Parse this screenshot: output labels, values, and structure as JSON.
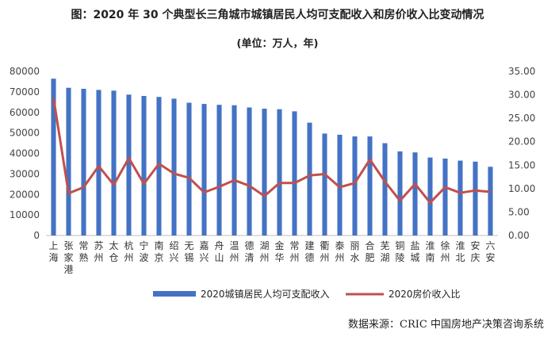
{
  "chart_data": {
    "type": "bar",
    "title": "图：2020 年 30 个典型长三角城市城镇居民人均可支配收入和房价收入比变动情况",
    "subtitle": "(单位：万人，年)",
    "categories": [
      "上海",
      "张家港",
      "常熟",
      "苏州",
      "太仓",
      "杭州",
      "宁波",
      "南京",
      "绍兴",
      "无锡",
      "嘉兴",
      "舟山",
      "温州",
      "德清",
      "湖州",
      "金华",
      "常州",
      "建德",
      "衢州",
      "泰州",
      "丽水",
      "合肥",
      "芜湖",
      "铜陵",
      "盐城",
      "淮南",
      "徐州",
      "淮北",
      "安庆",
      "六安"
    ],
    "y_left": {
      "ylim": [
        0,
        80000
      ],
      "ticks": [
        "0",
        "10000",
        "20000",
        "30000",
        "40000",
        "50000",
        "60000",
        "70000",
        "80000"
      ]
    },
    "y_right": {
      "ylim": [
        0,
        35
      ],
      "ticks": [
        "0.00",
        "5.00",
        "10.00",
        "15.00",
        "20.00",
        "25.00",
        "30.00",
        "35.00"
      ]
    },
    "series": [
      {
        "name": "2020城镇居民人均可支配收入",
        "type": "bar",
        "axis": "left",
        "color": "#4472C4",
        "values": [
          76437,
          72000,
          71500,
          70966,
          70600,
          68666,
          68008,
          67553,
          66694,
          64714,
          64124,
          63702,
          63495,
          62400,
          61800,
          61545,
          60529,
          55000,
          49700,
          49103,
          48300,
          48283,
          45000,
          41000,
          40500,
          38000,
          37500,
          36500,
          36000,
          33500
        ]
      },
      {
        "name": "2020房价收入比",
        "type": "line",
        "axis": "right",
        "color": "#C0504D",
        "values": [
          29.3,
          9.0,
          10.3,
          14.8,
          10.8,
          16.5,
          11.0,
          15.3,
          13.2,
          12.3,
          9.2,
          10.4,
          11.8,
          10.6,
          8.4,
          11.2,
          11.2,
          12.8,
          13.1,
          10.3,
          11.2,
          16.2,
          11.5,
          7.4,
          11.0,
          7.0,
          10.3,
          9.1,
          9.6,
          9.3
        ]
      }
    ],
    "legend_position": "bottom",
    "grid": false
  },
  "source": "数据来源：CRIC 中国房地产决策咨询系统"
}
